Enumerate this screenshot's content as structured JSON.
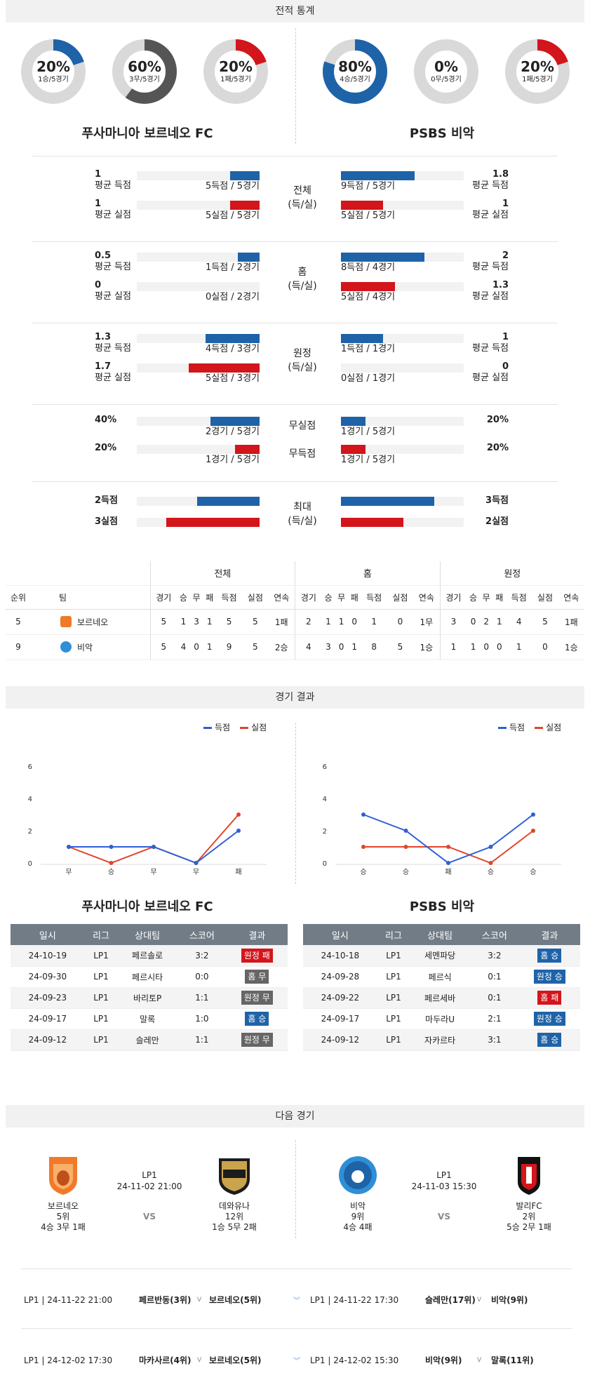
{
  "sections": {
    "stats": "전적 통계",
    "results": "경기 결과",
    "next": "다음 경기"
  },
  "donuts": [
    {
      "pct": "20%",
      "sub": "1승/5경기",
      "color": "#1e63a8",
      "value": 0.2
    },
    {
      "pct": "60%",
      "sub": "3무/5경기",
      "color": "#555555",
      "value": 0.6
    },
    {
      "pct": "20%",
      "sub": "1패/5경기",
      "color": "#d3151c",
      "value": 0.2
    },
    {
      "pct": "80%",
      "sub": "4승/5경기",
      "color": "#1e63a8",
      "value": 0.8
    },
    {
      "pct": "0%",
      "sub": "0무/5경기",
      "color": "#555555",
      "value": 0
    },
    {
      "pct": "20%",
      "sub": "1패/5경기",
      "color": "#d3151c",
      "value": 0.2
    }
  ],
  "teams": {
    "home": "푸사마니아 보르네오 FC",
    "away": "PSBS 비악"
  },
  "stats": [
    {
      "label": "전체\n(득/실)",
      "lv1": "1",
      "lt1": "평균 득점",
      "lr1": "5득점 / 5경기",
      "lf1": 0.24,
      "rv1": "1.8",
      "rt1": "평균 득점",
      "rr1": "9득점 / 5경기",
      "rf1": 0.6,
      "lv2": "1",
      "lt2": "평균 실점",
      "lr2": "5실점 / 5경기",
      "lf2": 0.24,
      "rv2": "1",
      "rt2": "평균 실점",
      "rr2": "5실점 / 5경기",
      "rf2": 0.34
    },
    {
      "label": "홈\n(득/실)",
      "lv1": "0.5",
      "lt1": "평균 득점",
      "lr1": "1득점 / 2경기",
      "lf1": 0.18,
      "rv1": "2",
      "rt1": "평균 득점",
      "rr1": "8득점 / 4경기",
      "rf1": 0.68,
      "lv2": "0",
      "lt2": "평균 실점",
      "lr2": "0실점 / 2경기",
      "lf2": 0,
      "rv2": "1.3",
      "rt2": "평균 실점",
      "rr2": "5실점 / 4경기",
      "rf2": 0.44
    },
    {
      "label": "원정\n(득/실)",
      "lv1": "1.3",
      "lt1": "평균 득점",
      "lr1": "4득점 / 3경기",
      "lf1": 0.44,
      "rv1": "1",
      "rt1": "평균 득점",
      "rr1": "1득점 / 1경기",
      "rf1": 0.34,
      "lv2": "1.7",
      "lt2": "평균 실점",
      "lr2": "5실점 / 3경기",
      "lf2": 0.58,
      "rv2": "0",
      "rt2": "평균 실점",
      "rr2": "0실점 / 1경기",
      "rf2": 0
    }
  ],
  "extra": [
    {
      "label": "무실점",
      "lv": "40%",
      "lr": "2경기 / 5경기",
      "lf": 0.4,
      "rv": "20%",
      "rr": "1경기 / 5경기",
      "rf": 0.2
    },
    {
      "label": "무득점",
      "lv": "20%",
      "lr": "1경기 / 5경기",
      "lf": 0.2,
      "rv": "20%",
      "rr": "1경기 / 5경기",
      "rf": 0.2
    }
  ],
  "max": {
    "label": "최대\n(득/실)",
    "l1": "2득점",
    "l2": "3실점",
    "r1": "3득점",
    "r2": "2실점",
    "lf1": 0.51,
    "lf2": 0.76,
    "rf1": 0.76,
    "rf2": 0.51
  },
  "standings": {
    "groups": [
      "전체",
      "홈",
      "원정"
    ],
    "head": [
      "순위",
      "팀",
      "경기",
      "승",
      "무",
      "패",
      "득점",
      "실점",
      "연속",
      "경기",
      "승",
      "무",
      "패",
      "득점",
      "실점",
      "연속",
      "경기",
      "승",
      "무",
      "패",
      "득점",
      "실점",
      "연속"
    ],
    "rows": [
      [
        "5",
        "보르네오",
        "5",
        "1",
        "3",
        "1",
        "5",
        "5",
        "1패",
        "2",
        "1",
        "1",
        "0",
        "1",
        "0",
        "1무",
        "3",
        "0",
        "2",
        "1",
        "4",
        "5",
        "1패"
      ],
      [
        "9",
        "비악",
        "5",
        "4",
        "0",
        "1",
        "9",
        "5",
        "2승",
        "4",
        "3",
        "0",
        "1",
        "8",
        "5",
        "1승",
        "1",
        "1",
        "0",
        "0",
        "1",
        "0",
        "1승"
      ]
    ]
  },
  "legend": {
    "scored": "득점",
    "conceded": "실점"
  },
  "chart_data": [
    {
      "type": "line",
      "categories": [
        "무",
        "승",
        "무",
        "무",
        "패"
      ],
      "series": [
        {
          "name": "득점",
          "values": [
            1,
            1,
            1,
            0,
            2
          ],
          "color": "#2f5fd6"
        },
        {
          "name": "실점",
          "values": [
            1,
            0,
            1,
            0,
            3
          ],
          "color": "#e0452c"
        }
      ],
      "yticks": [
        0,
        2,
        4,
        6
      ],
      "ylim": [
        0,
        6
      ]
    },
    {
      "type": "line",
      "categories": [
        "승",
        "승",
        "패",
        "승",
        "승"
      ],
      "series": [
        {
          "name": "득점",
          "values": [
            3,
            2,
            0,
            1,
            3
          ],
          "color": "#2f5fd6"
        },
        {
          "name": "실점",
          "values": [
            1,
            1,
            1,
            0,
            2
          ],
          "color": "#e0452c"
        }
      ],
      "yticks": [
        0,
        2,
        4,
        6
      ],
      "ylim": [
        0,
        6
      ]
    }
  ],
  "results_head": [
    "일시",
    "리그",
    "상대팀",
    "스코어",
    "결과"
  ],
  "results": [
    [
      [
        "24-10-19",
        "LP1",
        "페르솔로",
        "3:2",
        "원정 패",
        "red"
      ],
      [
        "24-09-30",
        "LP1",
        "페르시타",
        "0:0",
        "홈 무",
        "gray"
      ],
      [
        "24-09-23",
        "LP1",
        "바리토P",
        "1:1",
        "원정 무",
        "gray"
      ],
      [
        "24-09-17",
        "LP1",
        "말록",
        "1:0",
        "홈 승",
        "blue"
      ],
      [
        "24-09-12",
        "LP1",
        "슬레만",
        "1:1",
        "원정 무",
        "gray"
      ]
    ],
    [
      [
        "24-10-18",
        "LP1",
        "세멘파당",
        "3:2",
        "홈 승",
        "blue"
      ],
      [
        "24-09-28",
        "LP1",
        "페르식",
        "0:1",
        "원정 승",
        "blue"
      ],
      [
        "24-09-22",
        "LP1",
        "페르세바",
        "0:1",
        "홈 패",
        "red"
      ],
      [
        "24-09-17",
        "LP1",
        "마두라U",
        "2:1",
        "원정 승",
        "blue"
      ],
      [
        "24-09-12",
        "LP1",
        "자카르타",
        "3:1",
        "홈 승",
        "blue"
      ]
    ]
  ],
  "next": [
    {
      "home": "보르네오",
      "home_rank": "5위",
      "home_rec": "4승 3무 1패",
      "league": "LP1",
      "date": "24-11-02 21:00",
      "vs": "VS",
      "away": "데와유나",
      "away_rank": "12위",
      "away_rec": "1승 5무 2패"
    },
    {
      "home": "비악",
      "home_rank": "9위",
      "home_rec": "4승 4패",
      "league": "LP1",
      "date": "24-11-03 15:30",
      "vs": "VS",
      "away": "발리FC",
      "away_rank": "2위",
      "away_rec": "5승 2무 1패"
    }
  ],
  "fixtures": [
    {
      "l": "LP1 | 24-11-22 21:00",
      "lm": "페르반동(3위)",
      "lmark": "V",
      "lt": "보르네오(5위)",
      "r": "LP1 | 24-11-22 17:30",
      "rm": "슬레만(17위)",
      "rmark": "V",
      "rt": "비악(9위)"
    },
    {
      "l": "LP1 | 24-12-02 17:30",
      "lm": "마카사르(4위)",
      "lmark": "V",
      "lt": "보르네오(5위)",
      "r": "LP1 | 24-12-02 15:30",
      "rm": "비악(9위)",
      "rmark": "V",
      "rt": "말록(11위)"
    }
  ]
}
